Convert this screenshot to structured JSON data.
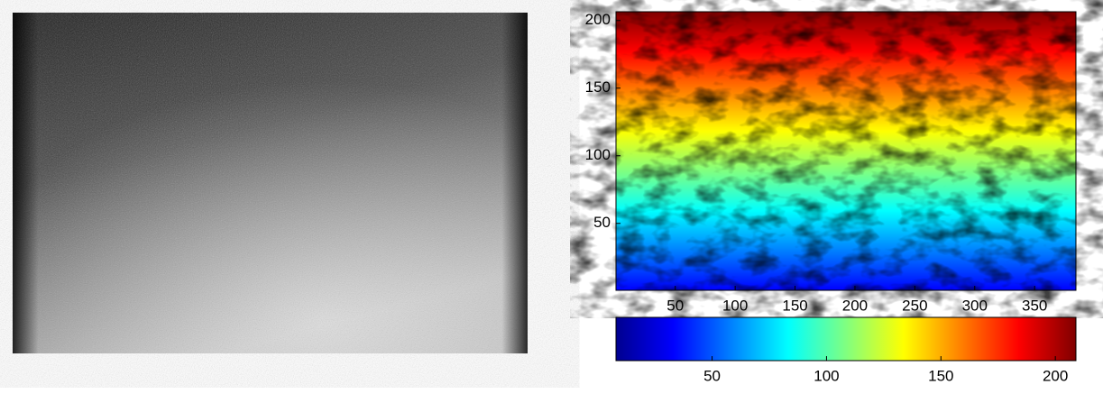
{
  "chart_data": [
    {
      "type": "contour",
      "xlim": [
        0.5,
        384.5
      ],
      "xticks": [
        50,
        100,
        150,
        200,
        250,
        300,
        350
      ],
      "ylim": [
        0.5,
        206.5
      ],
      "yticks": [
        50,
        100,
        150,
        200
      ],
      "colormap": [
        "#00008f",
        "#0000ff",
        "#0080ff",
        "#00ffff",
        "#80ff80",
        "#ffff00",
        "#ff8000",
        "#ff0000",
        "#800000"
      ]
    },
    {
      "type": "colorbar",
      "xlim": [
        8,
        209
      ],
      "xticks": [
        50,
        100,
        150,
        200
      ],
      "colormap": [
        "#00008f",
        "#0000ff",
        "#0080ff",
        "#00ffff",
        "#80ff80",
        "#ffff00",
        "#ff8000",
        "#ff0000",
        "#800000"
      ]
    }
  ]
}
